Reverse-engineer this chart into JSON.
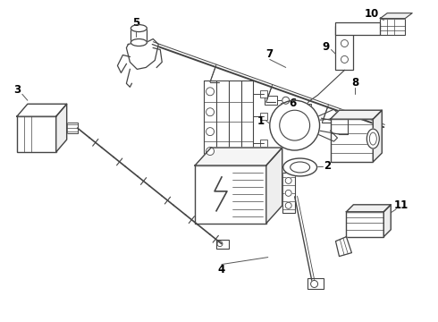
{
  "bg_color": "#ffffff",
  "line_color": "#444444",
  "label_color": "#000000",
  "figsize": [
    4.9,
    3.6
  ],
  "dpi": 100
}
